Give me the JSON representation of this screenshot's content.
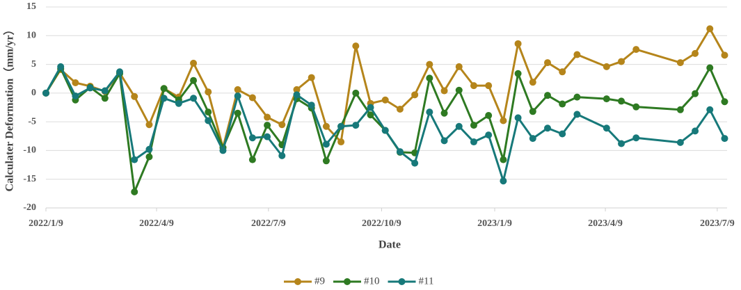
{
  "chart_data": {
    "type": "line",
    "xlabel": "Date",
    "ylabel": "Calculater Deformation（mm/yr）",
    "x": [
      "2022/1/9",
      "2022/1/21",
      "2022/2/2",
      "2022/2/14",
      "2022/2/26",
      "2022/3/10",
      "2022/3/22",
      "2022/4/3",
      "2022/4/15",
      "2022/4/27",
      "2022/5/9",
      "2022/5/21",
      "2022/6/2",
      "2022/6/14",
      "2022/6/26",
      "2022/7/8",
      "2022/7/20",
      "2022/8/1",
      "2022/8/13",
      "2022/8/25",
      "2022/9/6",
      "2022/9/18",
      "2022/9/30",
      "2022/10/12",
      "2022/10/24",
      "2022/11/5",
      "2022/11/17",
      "2022/11/29",
      "2022/12/11",
      "2022/12/23",
      "2023/1/4",
      "2023/1/16",
      "2023/1/28",
      "2023/2/9",
      "2023/2/21",
      "2023/3/5",
      "2023/3/17",
      "2023/4/10",
      "2023/4/22",
      "2023/5/4",
      "2023/6/9",
      "2023/6/21",
      "2023/7/3",
      "2023/7/15"
    ],
    "series": [
      {
        "name": "#9",
        "color": "#b5851b",
        "values": [
          0,
          4.1,
          1.8,
          1.2,
          0.3,
          3.5,
          -0.6,
          -5.5,
          0.8,
          -0.7,
          5.2,
          0.2,
          -9.5,
          0.6,
          -0.8,
          -4.2,
          -5.5,
          0.6,
          2.7,
          -5.8,
          -8.5,
          8.2,
          -1.8,
          -1.2,
          -2.8,
          -0.3,
          5.0,
          0.4,
          4.6,
          1.3,
          1.3,
          -4.8,
          8.6,
          1.9,
          5.3,
          3.7,
          6.7,
          4.6,
          5.5,
          7.6,
          5.3,
          6.9,
          11.2,
          6.6
        ]
      },
      {
        "name": "#10",
        "color": "#2e7a22",
        "values": [
          0,
          4.3,
          -1.2,
          1.0,
          -0.9,
          3.4,
          -17.2,
          -11.1,
          0.8,
          -1.2,
          2.2,
          -3.3,
          -9.5,
          -3.5,
          -11.6,
          -5.6,
          -9.0,
          -1.0,
          -2.6,
          -11.8,
          -5.8,
          0.0,
          -3.8,
          -6.5,
          -10.3,
          -10.4,
          2.6,
          -3.5,
          0.5,
          -5.6,
          -3.9,
          -11.6,
          3.4,
          -3.2,
          -0.4,
          -1.9,
          -0.7,
          -1.0,
          -1.4,
          -2.4,
          -2.9,
          -0.1,
          4.4,
          -1.5
        ]
      },
      {
        "name": "#11",
        "color": "#17797a",
        "values": [
          0,
          4.6,
          -0.5,
          0.9,
          0.4,
          3.7,
          -11.6,
          -9.8,
          -0.9,
          -1.8,
          -0.9,
          -4.8,
          -10.0,
          -0.5,
          -7.8,
          -7.6,
          -10.9,
          -0.3,
          -2.1,
          -8.9,
          -5.8,
          -5.6,
          -2.5,
          -6.5,
          -10.2,
          -12.2,
          -3.3,
          -8.3,
          -5.8,
          -8.5,
          -7.3,
          -15.3,
          -4.3,
          -7.9,
          -6.1,
          -7.1,
          -3.7,
          -6.1,
          -8.8,
          -7.8,
          -8.6,
          -6.6,
          -2.9,
          -7.9
        ]
      }
    ],
    "xlim": [
      "2022/1/9",
      "2023/7/17"
    ],
    "xticks": [
      "2022/1/9",
      "2022/4/9",
      "2022/7/9",
      "2022/10/9",
      "2023/1/9",
      "2023/4/9",
      "2023/7/9"
    ],
    "ylim": [
      -20,
      15
    ],
    "yticks": [
      -20,
      -15,
      -10,
      -5,
      0,
      5,
      10,
      15
    ],
    "grid": true,
    "legend": "bottom"
  }
}
